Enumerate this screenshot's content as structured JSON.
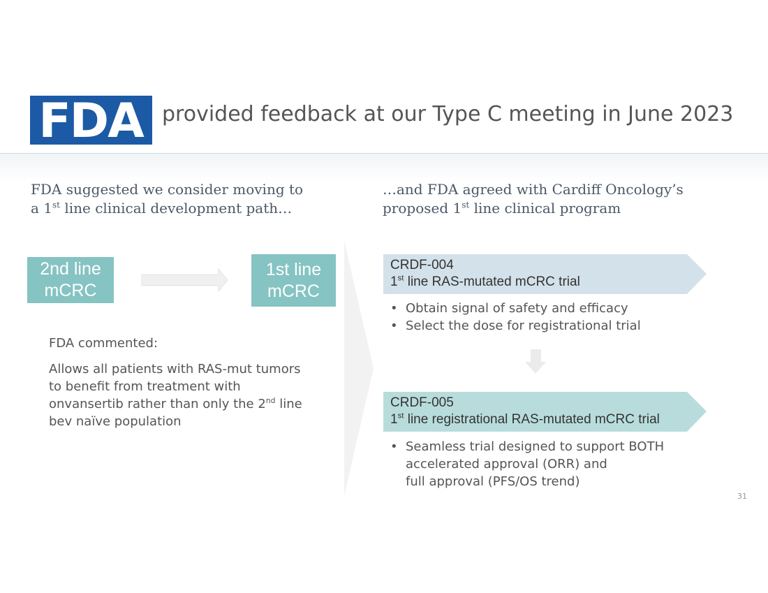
{
  "header": {
    "logo": "FDA",
    "title": "provided feedback at our Type C meeting in June 2023"
  },
  "left": {
    "heading": [
      "FDA suggested we consider moving to",
      "a 1",
      "st",
      " line clinical development path…"
    ],
    "box_from": [
      "2nd line",
      "mCRC"
    ],
    "box_to": [
      "1st line",
      "mCRC"
    ],
    "comment_label": "FDA commented:",
    "comment": [
      "Allows all patients with RAS-mut tumors",
      "to benefit from treatment with",
      "onvansertib rather than only the 2",
      "nd",
      " line",
      "bev naïve population"
    ]
  },
  "right": {
    "heading": [
      "…and FDA agreed with Cardiff Oncology’s",
      "proposed 1",
      "st",
      " line clinical program"
    ],
    "trials": [
      {
        "id": "CRDF-004",
        "name": [
          "1",
          "st",
          " line RAS-mutated mCRC trial"
        ],
        "bullets": [
          [
            "Obtain signal of safety and efficacy"
          ],
          [
            "Select the dose for registrational trial"
          ]
        ]
      },
      {
        "id": "CRDF-005",
        "name": [
          "1",
          "st",
          " line registrational RAS-mutated mCRC trial"
        ],
        "bullets": [
          [
            "Seamless trial designed to support BOTH",
            "accelerated approval (ORR) and",
            "full approval (PFS/OS trend)"
          ]
        ]
      }
    ]
  },
  "page_number": "31"
}
